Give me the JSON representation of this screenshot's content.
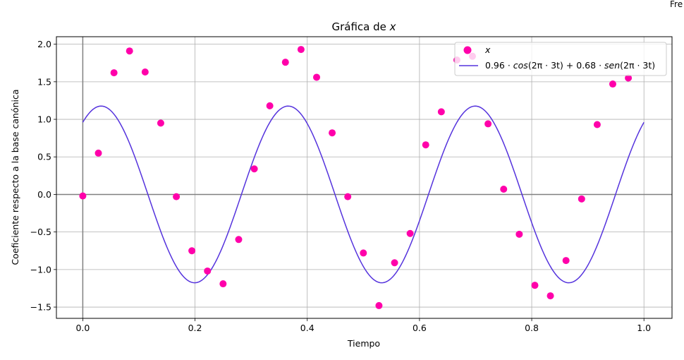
{
  "chart_data": {
    "type": "scatter",
    "title_prefix": "Gráfica de ",
    "title_var": "x",
    "xlabel": "Tiempo",
    "ylabel": "Coeficiente respecto a la base canónica",
    "xlim": [
      -0.047,
      1.05
    ],
    "ylim": [
      -1.65,
      2.1
    ],
    "xticks": [
      0.0,
      0.2,
      0.4,
      0.6,
      0.8,
      1.0
    ],
    "xtick_labels": [
      "0.0",
      "0.2",
      "0.4",
      "0.6",
      "0.8",
      "1.0"
    ],
    "yticks": [
      -1.5,
      -1.0,
      -0.5,
      0.0,
      0.5,
      1.0,
      1.5,
      2.0
    ],
    "ytick_labels": [
      "−1.5",
      "−1.0",
      "−0.5",
      "0.0",
      "0.5",
      "1.0",
      "1.5",
      "2.0"
    ],
    "grid": true,
    "legend_position": "top-right",
    "series": [
      {
        "name": "x",
        "kind": "scatter",
        "color": "#ff00aa",
        "x": [
          0.0,
          0.0278,
          0.0556,
          0.0833,
          0.1111,
          0.1389,
          0.1667,
          0.1944,
          0.2222,
          0.25,
          0.2778,
          0.3056,
          0.3333,
          0.3611,
          0.3889,
          0.4167,
          0.4444,
          0.4722,
          0.5,
          0.5278,
          0.5556,
          0.5833,
          0.6111,
          0.6389,
          0.6667,
          0.6944,
          0.7222,
          0.75,
          0.7778,
          0.8056,
          0.8333,
          0.8611,
          0.8889,
          0.9167,
          0.9444,
          0.9722
        ],
        "y": [
          -0.02,
          0.55,
          1.62,
          1.91,
          1.63,
          0.95,
          -0.03,
          -0.75,
          -1.02,
          -1.19,
          -0.6,
          0.34,
          1.18,
          1.76,
          1.93,
          1.56,
          0.82,
          -0.03,
          -0.78,
          -1.48,
          -0.91,
          -0.52,
          0.66,
          1.1,
          1.79,
          1.84,
          0.94,
          0.07,
          -0.53,
          -1.21,
          -1.35,
          -0.88,
          -0.06,
          0.93,
          1.47,
          1.55
        ]
      },
      {
        "name": "0.96 · cos(2π · 3t) + 0.68 · sen(2π · 3t)",
        "kind": "line",
        "color": "#5533dd",
        "a": 0.96,
        "b": 0.68,
        "freq": 3,
        "x_range": [
          0,
          1
        ]
      }
    ],
    "legend": {
      "entry1_label": "x",
      "entry2_coef_a": "0.96",
      "entry2_func_a": "cos",
      "entry2_arg": "(2π · 3t)",
      "entry2_plus": " + ",
      "entry2_coef_b": "0.68",
      "entry2_func_b": "sen",
      "dot_op": " · "
    }
  },
  "edge_text": "Fre"
}
